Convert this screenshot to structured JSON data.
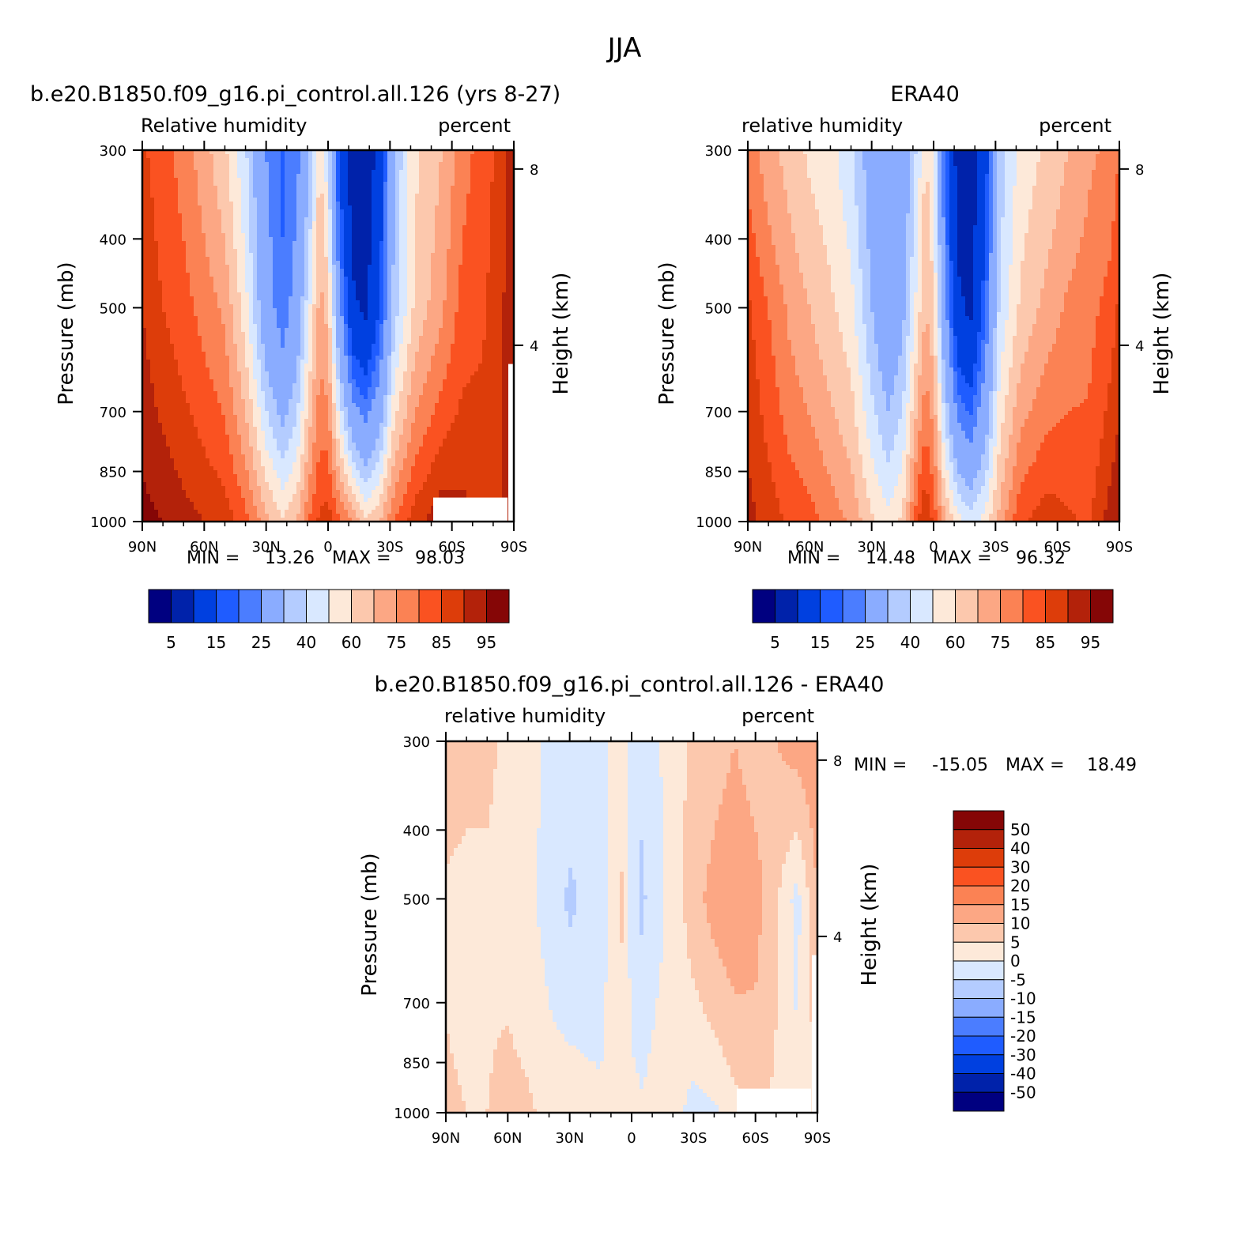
{
  "figure": {
    "title": "JJA"
  },
  "chart_data": [
    {
      "type": "heatmap",
      "title": "b.e20.B1850.f09_g16.pi_control.all.126 (yrs 8-27)",
      "left_label": "Relative humidity",
      "right_label": "percent",
      "xlabel": "",
      "ylabel": "Pressure (mb)",
      "ylabel_right": "Height (km)",
      "x_ticks": [
        "90N",
        "60N",
        "30N",
        "0",
        "30S",
        "60S",
        "90S"
      ],
      "y_ticks": [
        "300",
        "400",
        "500",
        "700",
        "850",
        "1000"
      ],
      "y_ticks_right": [
        "8",
        "4"
      ],
      "ylim": [
        1000,
        300
      ],
      "min_label": "MIN =",
      "min_value": "13.26",
      "max_label": "MAX =",
      "max_value": "98.03",
      "colorbar_labels": [
        "5",
        "15",
        "25",
        "40",
        "60",
        "75",
        "85",
        "95"
      ],
      "colors": [
        "#000080",
        "#0022aa",
        "#0040e0",
        "#1f5cff",
        "#4b7dff",
        "#8aacff",
        "#b4ccff",
        "#d9e8ff",
        "#fde9d9",
        "#fcc8ad",
        "#fca784",
        "#fb8254",
        "#fa5221",
        "#dd3d0a",
        "#b3220a",
        "#850606"
      ],
      "profiles": [
        {
          "lat": 90,
          "v": [
            86,
            90,
            97
          ]
        },
        {
          "lat": 80,
          "v": [
            82,
            85,
            95
          ]
        },
        {
          "lat": 70,
          "v": [
            78,
            82,
            92
          ]
        },
        {
          "lat": 60,
          "v": [
            72,
            78,
            90
          ]
        },
        {
          "lat": 50,
          "v": [
            66,
            74,
            88
          ]
        },
        {
          "lat": 40,
          "v": [
            56,
            62,
            82
          ]
        },
        {
          "lat": 30,
          "v": [
            40,
            44,
            72
          ]
        },
        {
          "lat": 22,
          "v": [
            34,
            36,
            66
          ]
        },
        {
          "lat": 15,
          "v": [
            38,
            44,
            70
          ]
        },
        {
          "lat": 8,
          "v": [
            52,
            62,
            82
          ]
        },
        {
          "lat": 4,
          "v": [
            66,
            72,
            86
          ]
        },
        {
          "lat": 0,
          "v": [
            56,
            68,
            88
          ]
        },
        {
          "lat": -5,
          "v": [
            30,
            44,
            82
          ]
        },
        {
          "lat": -12,
          "v": [
            14,
            22,
            74
          ]
        },
        {
          "lat": -18,
          "v": [
            13.3,
            18,
            66
          ]
        },
        {
          "lat": -25,
          "v": [
            24,
            30,
            70
          ]
        },
        {
          "lat": -32,
          "v": [
            50,
            52,
            80
          ]
        },
        {
          "lat": -42,
          "v": [
            64,
            66,
            88
          ]
        },
        {
          "lat": -55,
          "v": [
            70,
            74,
            94
          ]
        },
        {
          "lat": -65,
          "v": [
            78,
            82,
            92
          ]
        },
        {
          "lat": -75,
          "v": [
            82,
            84,
            90
          ]
        },
        {
          "lat": -85,
          "v": [
            88,
            90,
            90
          ]
        },
        {
          "lat": -90,
          "v": [
            96,
            96,
            96
          ]
        }
      ]
    },
    {
      "type": "heatmap",
      "title": "ERA40",
      "left_label": "relative humidity",
      "right_label": "percent",
      "xlabel": "",
      "ylabel": "Pressure (mb)",
      "ylabel_right": "Height (km)",
      "x_ticks": [
        "90N",
        "60N",
        "30N",
        "0",
        "30S",
        "60S",
        "90S"
      ],
      "y_ticks": [
        "300",
        "400",
        "500",
        "700",
        "850",
        "1000"
      ],
      "y_ticks_right": [
        "8",
        "4"
      ],
      "ylim": [
        1000,
        300
      ],
      "min_label": "MIN =",
      "min_value": "14.48",
      "max_label": "MAX =",
      "max_value": "96.32",
      "colorbar_labels": [
        "5",
        "15",
        "25",
        "40",
        "60",
        "75",
        "85",
        "95"
      ],
      "colors": [
        "#000080",
        "#0022aa",
        "#0040e0",
        "#1f5cff",
        "#4b7dff",
        "#8aacff",
        "#b4ccff",
        "#d9e8ff",
        "#fde9d9",
        "#fcc8ad",
        "#fca784",
        "#fb8254",
        "#fa5221",
        "#dd3d0a",
        "#b3220a",
        "#850606"
      ],
      "profiles": [
        {
          "lat": 90,
          "v": [
            78,
            86,
            92
          ]
        },
        {
          "lat": 80,
          "v": [
            72,
            80,
            88
          ]
        },
        {
          "lat": 70,
          "v": [
            68,
            74,
            84
          ]
        },
        {
          "lat": 60,
          "v": [
            64,
            70,
            82
          ]
        },
        {
          "lat": 50,
          "v": [
            62,
            66,
            78
          ]
        },
        {
          "lat": 40,
          "v": [
            56,
            62,
            74
          ]
        },
        {
          "lat": 30,
          "v": [
            46,
            50,
            66
          ]
        },
        {
          "lat": 22,
          "v": [
            40,
            42,
            62
          ]
        },
        {
          "lat": 15,
          "v": [
            44,
            48,
            66
          ]
        },
        {
          "lat": 8,
          "v": [
            56,
            62,
            84
          ]
        },
        {
          "lat": 4,
          "v": [
            66,
            70,
            90
          ]
        },
        {
          "lat": 0,
          "v": [
            60,
            66,
            84
          ]
        },
        {
          "lat": -5,
          "v": [
            36,
            44,
            72
          ]
        },
        {
          "lat": -12,
          "v": [
            15,
            22,
            62
          ]
        },
        {
          "lat": -18,
          "v": [
            14.5,
            18,
            58
          ]
        },
        {
          "lat": -25,
          "v": [
            26,
            34,
            62
          ]
        },
        {
          "lat": -32,
          "v": [
            52,
            56,
            72
          ]
        },
        {
          "lat": -42,
          "v": [
            62,
            66,
            84
          ]
        },
        {
          "lat": -55,
          "v": [
            66,
            72,
            88
          ]
        },
        {
          "lat": -65,
          "v": [
            70,
            76,
            86
          ]
        },
        {
          "lat": -75,
          "v": [
            74,
            78,
            84
          ]
        },
        {
          "lat": -85,
          "v": [
            76,
            82,
            92
          ]
        },
        {
          "lat": -90,
          "v": [
            80,
            86,
            95
          ]
        }
      ]
    },
    {
      "type": "heatmap",
      "title": "b.e20.B1850.f09_g16.pi_control.all.126 - ERA40",
      "left_label": "relative humidity",
      "right_label": "percent",
      "xlabel": "",
      "ylabel": "Pressure (mb)",
      "ylabel_right": "Height (km)",
      "x_ticks": [
        "90N",
        "60N",
        "30N",
        "0",
        "30S",
        "60S",
        "90S"
      ],
      "y_ticks": [
        "300",
        "400",
        "500",
        "700",
        "850",
        "1000"
      ],
      "y_ticks_right": [
        "8",
        "4"
      ],
      "ylim": [
        1000,
        300
      ],
      "min_label": "MIN =",
      "min_value": "-15.05",
      "max_label": "MAX =",
      "max_value": "18.49",
      "colorbar_labels": [
        "50",
        "40",
        "30",
        "20",
        "15",
        "10",
        "5",
        "0",
        "-5",
        "-10",
        "-15",
        "-20",
        "-30",
        "-40",
        "-50"
      ],
      "colors": [
        "#000080",
        "#0022aa",
        "#0040e0",
        "#1f5cff",
        "#4b7dff",
        "#8aacff",
        "#b4ccff",
        "#d9e8ff",
        "#fde9d9",
        "#fcc8ad",
        "#fca784",
        "#fb8254",
        "#fa5221",
        "#dd3d0a",
        "#b3220a",
        "#850606"
      ],
      "profiles": [
        {
          "lat": 90,
          "v": [
            8,
            4,
            6
          ]
        },
        {
          "lat": 80,
          "v": [
            7,
            3,
            5
          ]
        },
        {
          "lat": 70,
          "v": [
            6,
            4,
            5
          ]
        },
        {
          "lat": 60,
          "v": [
            4,
            3,
            7
          ]
        },
        {
          "lat": 50,
          "v": [
            2,
            1,
            6
          ]
        },
        {
          "lat": 40,
          "v": [
            -1,
            -2,
            3
          ]
        },
        {
          "lat": 30,
          "v": [
            -2,
            -6,
            4
          ]
        },
        {
          "lat": 22,
          "v": [
            -3,
            -4,
            2
          ]
        },
        {
          "lat": 15,
          "v": [
            -2,
            -3,
            1
          ]
        },
        {
          "lat": 8,
          "v": [
            2,
            4,
            1
          ]
        },
        {
          "lat": 4,
          "v": [
            3,
            6,
            2
          ]
        },
        {
          "lat": 0,
          "v": [
            -2,
            -3,
            2
          ]
        },
        {
          "lat": -5,
          "v": [
            -4,
            -6,
            1
          ]
        },
        {
          "lat": -12,
          "v": [
            -1,
            -2,
            3
          ]
        },
        {
          "lat": -20,
          "v": [
            3,
            2,
            2
          ]
        },
        {
          "lat": -30,
          "v": [
            6,
            8,
            -2
          ]
        },
        {
          "lat": -40,
          "v": [
            8,
            12,
            -1
          ]
        },
        {
          "lat": -50,
          "v": [
            10,
            14,
            3
          ]
        },
        {
          "lat": -60,
          "v": [
            8,
            12,
            6
          ]
        },
        {
          "lat": -70,
          "v": [
            10,
            6,
            4
          ]
        },
        {
          "lat": -80,
          "v": [
            12,
            -2,
            2
          ]
        },
        {
          "lat": -90,
          "v": [
            14,
            10,
            4
          ]
        }
      ]
    }
  ]
}
